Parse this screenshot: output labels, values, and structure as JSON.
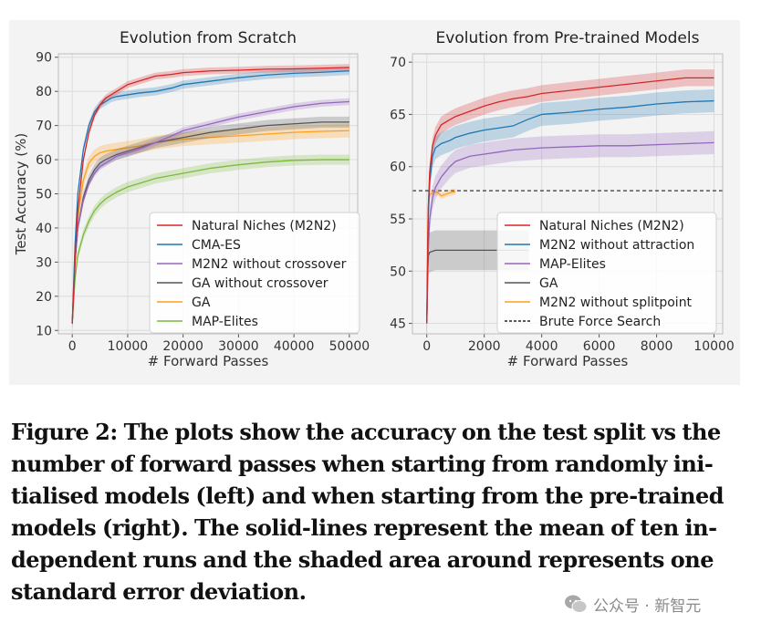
{
  "chart_data": [
    {
      "type": "line",
      "title": "Evolution from Scratch",
      "xlabel": "# Forward Passes",
      "ylabel": "Test Accuracy (%)",
      "xlim": [
        -2500,
        51500
      ],
      "ylim": [
        9,
        91
      ],
      "xticks": [
        0,
        10000,
        20000,
        30000,
        40000,
        50000
      ],
      "yticks": [
        10,
        20,
        30,
        40,
        50,
        60,
        70,
        80,
        90
      ],
      "grid": true,
      "legend_position": "lower-right",
      "series": [
        {
          "name": "Natural Niches (M2N2)",
          "color": "#d62728",
          "band": 1.0,
          "x": [
            0,
            500,
            1000,
            2000,
            3000,
            4000,
            5000,
            6000,
            7000,
            8000,
            10000,
            12000,
            15000,
            18000,
            20000,
            25000,
            30000,
            35000,
            40000,
            45000,
            50000
          ],
          "y": [
            12,
            30,
            45,
            60,
            68,
            73,
            76,
            78,
            79,
            80,
            82,
            83,
            84.5,
            85,
            85.5,
            86,
            86.2,
            86.5,
            86.6,
            86.8,
            87
          ]
        },
        {
          "name": "CMA-ES",
          "color": "#1f77b4",
          "band": 1.2,
          "x": [
            0,
            500,
            1000,
            2000,
            3000,
            4000,
            5000,
            6000,
            7000,
            8000,
            10000,
            12000,
            15000,
            18000,
            20000,
            25000,
            30000,
            35000,
            40000,
            45000,
            50000
          ],
          "y": [
            12,
            35,
            50,
            63,
            70,
            74,
            76,
            77,
            78,
            78.5,
            79,
            79.5,
            80,
            81,
            82,
            83,
            84,
            84.8,
            85.3,
            85.6,
            86
          ]
        },
        {
          "name": "M2N2 without crossover",
          "color": "#9467bd",
          "band": 1.0,
          "x": [
            0,
            500,
            1000,
            2000,
            3000,
            4000,
            5000,
            6000,
            8000,
            10000,
            12000,
            15000,
            18000,
            20000,
            25000,
            30000,
            35000,
            40000,
            45000,
            50000
          ],
          "y": [
            12,
            30,
            40,
            48,
            53,
            56,
            58,
            59,
            61,
            62,
            63,
            65,
            67,
            68.5,
            70.5,
            72.5,
            74,
            75.5,
            76.5,
            77
          ]
        },
        {
          "name": "GA without crossover",
          "color": "#555555",
          "band": 1.6,
          "x": [
            0,
            500,
            1000,
            2000,
            3000,
            4000,
            5000,
            6000,
            8000,
            10000,
            12000,
            15000,
            20000,
            25000,
            30000,
            35000,
            40000,
            45000,
            50000
          ],
          "y": [
            12,
            30,
            40,
            49,
            54,
            57,
            59,
            60,
            61.5,
            62.5,
            63.5,
            65,
            66.5,
            68,
            69,
            70,
            70.5,
            71,
            71
          ]
        },
        {
          "name": "GA",
          "color": "#ff9f1c",
          "band": 2.0,
          "x": [
            0,
            500,
            1000,
            2000,
            3000,
            4000,
            5000,
            6000,
            8000,
            10000,
            12000,
            15000,
            20000,
            25000,
            30000,
            35000,
            40000,
            45000,
            50000
          ],
          "y": [
            12,
            33,
            43,
            54,
            59,
            61,
            62,
            62.5,
            63,
            63.5,
            64,
            65,
            66,
            66.5,
            67,
            67.5,
            68,
            68.3,
            68.5
          ]
        },
        {
          "name": "MAP-Elites",
          "color": "#7cba3b",
          "band": 1.5,
          "x": [
            0,
            500,
            1000,
            2000,
            3000,
            4000,
            5000,
            6000,
            8000,
            10000,
            12000,
            15000,
            20000,
            25000,
            30000,
            35000,
            40000,
            45000,
            50000
          ],
          "y": [
            12,
            25,
            32,
            38,
            42,
            45,
            47,
            48.5,
            50.5,
            52,
            53,
            54.5,
            56,
            57.5,
            58.5,
            59.3,
            59.8,
            60,
            60
          ]
        }
      ]
    },
    {
      "type": "line",
      "title": "Evolution from Pre-trained Models",
      "xlabel": "# Forward Passes",
      "ylabel": "",
      "xlim": [
        -500,
        10300
      ],
      "ylim": [
        44,
        70.8
      ],
      "xticks": [
        0,
        2000,
        4000,
        6000,
        8000,
        10000
      ],
      "yticks": [
        45,
        50,
        55,
        60,
        65,
        70
      ],
      "grid": true,
      "legend_position": "lower-right",
      "series": [
        {
          "name": "Natural Niches (M2N2)",
          "color": "#d62728",
          "band": 0.8,
          "x": [
            0,
            50,
            100,
            200,
            300,
            500,
            800,
            1000,
            1500,
            2000,
            2500,
            3000,
            3500,
            4000,
            5000,
            6000,
            7000,
            8000,
            9000,
            10000
          ],
          "y": [
            45,
            56,
            59.5,
            62,
            63,
            64,
            64.5,
            64.8,
            65.3,
            65.8,
            66.2,
            66.5,
            66.7,
            67,
            67.3,
            67.6,
            67.9,
            68.2,
            68.5,
            68.5
          ]
        },
        {
          "name": "M2N2 without attraction",
          "color": "#1f77b4",
          "band": 1.1,
          "x": [
            0,
            50,
            100,
            200,
            300,
            500,
            800,
            1000,
            1500,
            2000,
            2500,
            3000,
            3500,
            4000,
            5000,
            6000,
            7000,
            8000,
            9000,
            10000
          ],
          "y": [
            45,
            55,
            58.5,
            61,
            61.8,
            62.2,
            62.5,
            62.8,
            63.2,
            63.5,
            63.7,
            63.9,
            64.5,
            65,
            65.2,
            65.5,
            65.7,
            66,
            66.2,
            66.3
          ]
        },
        {
          "name": "MAP-Elites",
          "color": "#9467bd",
          "band": 1.1,
          "x": [
            0,
            50,
            100,
            200,
            300,
            500,
            800,
            1000,
            1500,
            2000,
            2500,
            3000,
            3500,
            4000,
            5000,
            6000,
            7000,
            8000,
            9000,
            10000
          ],
          "y": [
            45,
            52,
            55,
            57,
            58,
            59,
            60,
            60.5,
            61,
            61.2,
            61.4,
            61.6,
            61.7,
            61.8,
            61.9,
            62,
            62,
            62.1,
            62.2,
            62.3
          ]
        },
        {
          "name": "GA",
          "color": "#555555",
          "band": 1.9,
          "x": [
            0,
            30,
            60,
            100,
            200,
            300,
            500,
            800,
            1000,
            2000,
            3000,
            3500,
            3550
          ],
          "y": [
            45,
            50,
            51.5,
            51.8,
            51.9,
            52,
            52,
            52,
            52,
            52,
            52,
            52,
            52
          ]
        },
        {
          "name": "M2N2 without splitpoint",
          "color": "#ff9f1c",
          "band": 0.3,
          "x": [
            0,
            30,
            60,
            100,
            200,
            300,
            400,
            500,
            600,
            800,
            1000
          ],
          "y": [
            45,
            54,
            56.5,
            57.3,
            57.5,
            57.6,
            57.5,
            57.2,
            57.3,
            57.5,
            57.6
          ]
        },
        {
          "name": "Brute Force Search",
          "color": "#222222",
          "dashed": true,
          "x": [
            -500,
            10300
          ],
          "y": [
            57.7,
            57.7
          ]
        }
      ]
    }
  ],
  "caption": {
    "lines": [
      "Figure 2: The plots show the accuracy on the test split vs the",
      "number of forward passes when starting from randomly ini-",
      "tialised models (left) and when starting from the pre-trained",
      "models (right). The solid-lines represent the mean of ten in-",
      "dependent runs and the shaded area around represents one",
      "standard error deviation."
    ]
  },
  "watermark": {
    "icon": "wechat-icon",
    "text": "公众号 · 新智元"
  }
}
